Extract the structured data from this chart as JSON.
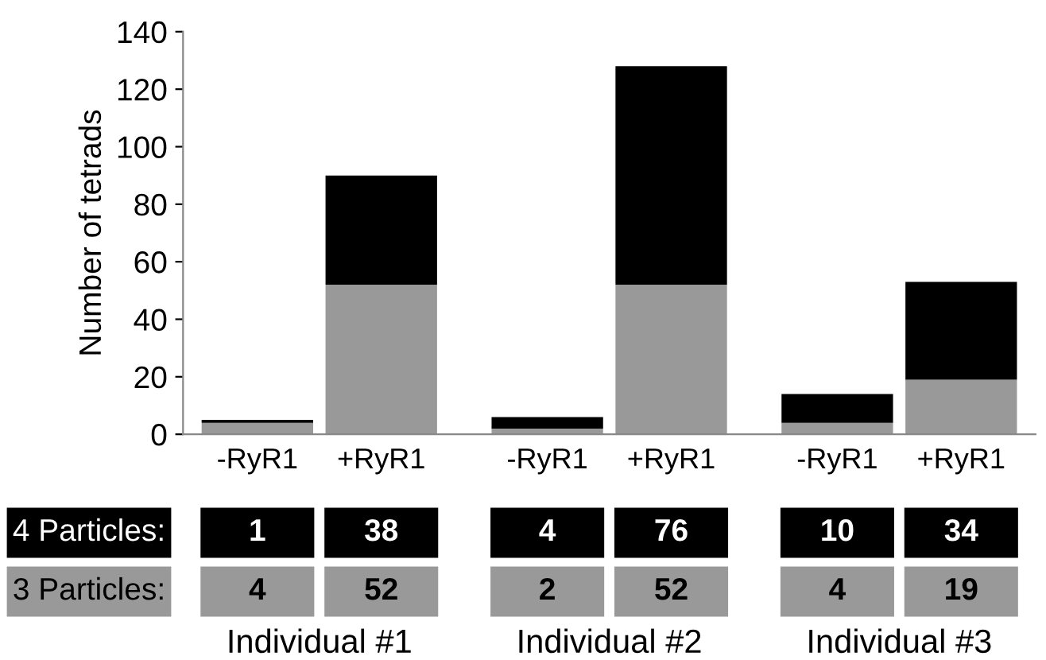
{
  "chart_data": {
    "type": "bar",
    "stacked": true,
    "ylabel": "Number of tetrads",
    "categories": [
      "-RyR1",
      "+RyR1",
      "-RyR1",
      "+RyR1",
      "-RyR1",
      "+RyR1"
    ],
    "series": [
      {
        "name": "3 Particles:",
        "color": "#999999",
        "values": [
          4,
          52,
          2,
          52,
          4,
          19
        ]
      },
      {
        "name": "4 Particles:",
        "color": "#000000",
        "values": [
          1,
          38,
          4,
          76,
          10,
          34
        ]
      }
    ],
    "ylim": [
      0,
      140
    ],
    "yticks": [
      0,
      20,
      40,
      60,
      80,
      100,
      120,
      140
    ],
    "grid": false,
    "legend": "bottom",
    "data_labels": true,
    "annotations": [
      "Individual #1",
      "Individual #2",
      "Individual #3"
    ]
  }
}
